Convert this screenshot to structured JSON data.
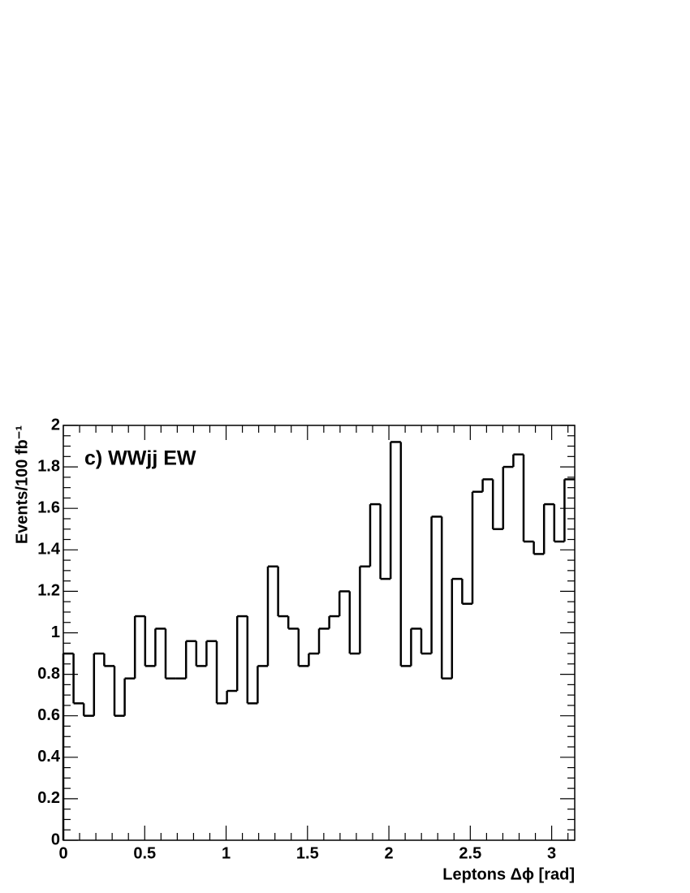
{
  "chart_data": {
    "type": "histogram",
    "annotation": "c) WWjj EW",
    "xlabel": "Leptons Δϕ [rad]",
    "ylabel": "Events/100 fb⁻¹",
    "bins": [
      0,
      0.0628,
      0.1257,
      0.1885,
      0.2513,
      0.3142,
      0.377,
      0.4398,
      0.5027,
      0.5655,
      0.6283,
      0.6912,
      0.754,
      0.8168,
      0.8796,
      0.9425,
      1.0053,
      1.0681,
      1.131,
      1.1938,
      1.2566,
      1.3195,
      1.3823,
      1.4451,
      1.508,
      1.5708,
      1.6336,
      1.6965,
      1.7593,
      1.8221,
      1.885,
      1.9478,
      2.0106,
      2.0735,
      2.1363,
      2.1991,
      2.2619,
      2.3248,
      2.3876,
      2.4504,
      2.5133,
      2.5761,
      2.6389,
      2.7018,
      2.7646,
      2.8274,
      2.8903,
      2.9531,
      3.0159,
      3.0788,
      3.1416
    ],
    "values": [
      0.9,
      0.66,
      0.6,
      0.9,
      0.84,
      0.6,
      0.78,
      1.08,
      0.84,
      1.02,
      0.78,
      0.78,
      0.96,
      0.84,
      0.96,
      0.66,
      0.72,
      1.08,
      0.66,
      0.84,
      1.32,
      1.08,
      1.02,
      0.84,
      0.9,
      1.02,
      1.08,
      1.2,
      0.9,
      1.32,
      1.62,
      1.26,
      1.92,
      0.84,
      1.02,
      0.9,
      1.56,
      0.78,
      1.26,
      1.14,
      1.68,
      1.74,
      1.5,
      1.8,
      1.86,
      1.44,
      1.38,
      1.62,
      1.44,
      1.74
    ],
    "color": "#000000",
    "xlim": [
      0,
      3.1416
    ],
    "xticks": [
      0,
      0.5,
      1,
      1.5,
      2,
      2.5,
      3
    ],
    "ylim": [
      0,
      2
    ],
    "yticks": [
      0,
      0.2,
      0.4,
      0.6,
      0.8,
      1,
      1.2,
      1.4,
      1.6,
      1.8,
      2
    ]
  }
}
